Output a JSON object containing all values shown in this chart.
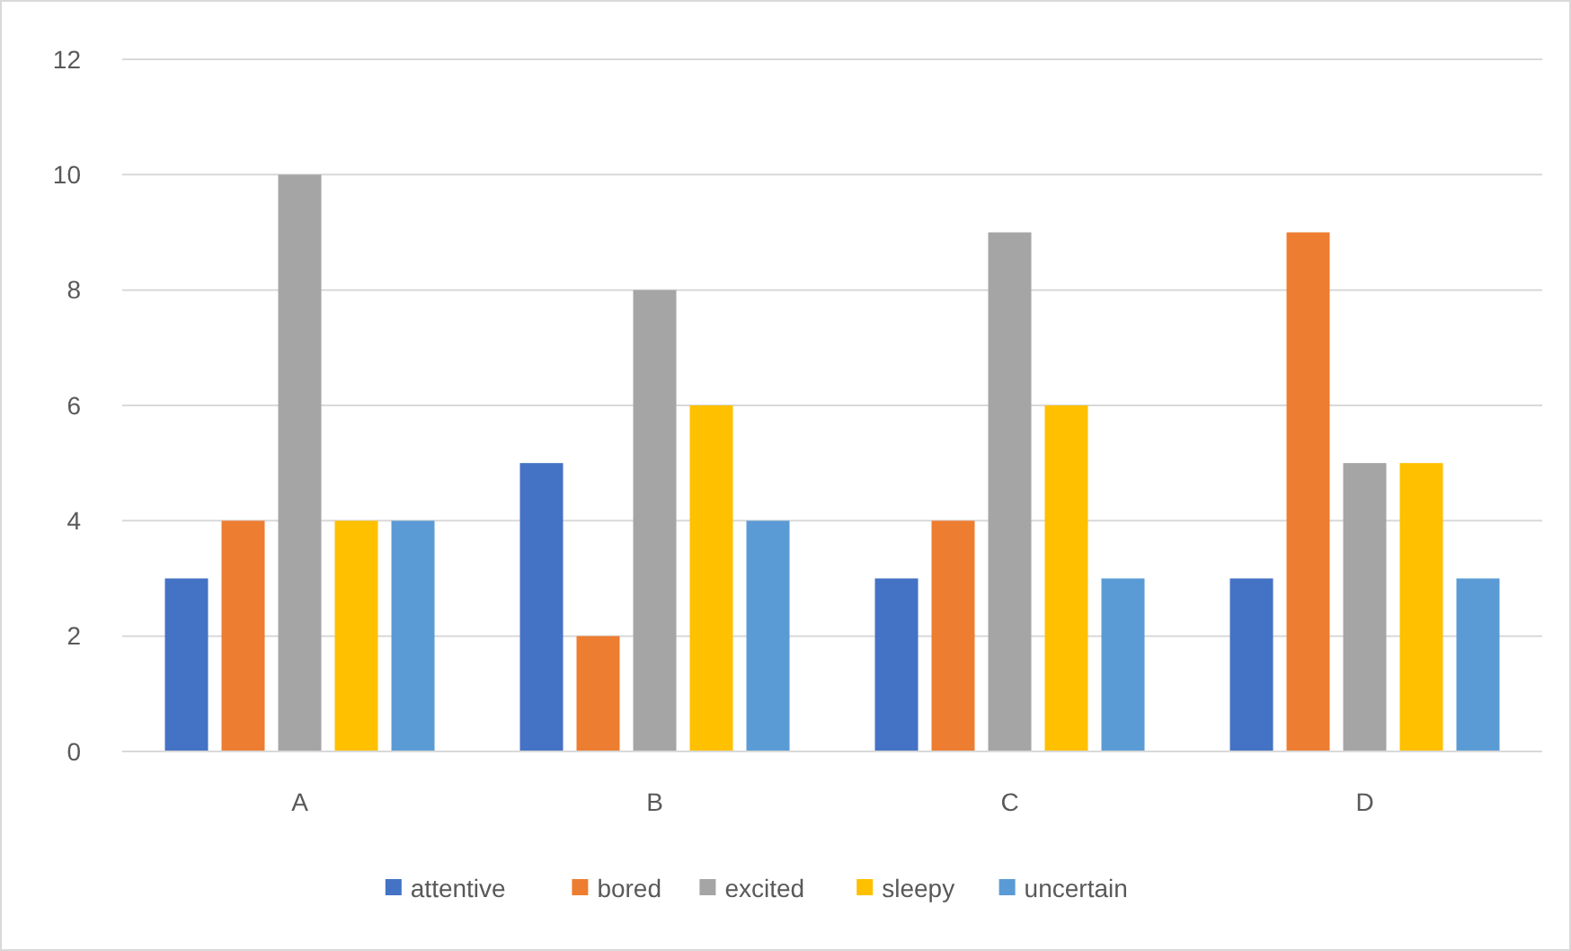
{
  "chart_data": {
    "type": "bar",
    "categories": [
      "A",
      "B",
      "C",
      "D"
    ],
    "series": [
      {
        "name": "attentive",
        "color": "#4472c4",
        "values": [
          3,
          5,
          3,
          3
        ]
      },
      {
        "name": "bored",
        "color": "#ed7d31",
        "values": [
          4,
          2,
          4,
          9
        ]
      },
      {
        "name": "excited",
        "color": "#a5a5a5",
        "values": [
          10,
          8,
          9,
          5
        ]
      },
      {
        "name": "sleepy",
        "color": "#ffc000",
        "values": [
          4,
          6,
          6,
          5
        ]
      },
      {
        "name": "uncertain",
        "color": "#5b9bd5",
        "values": [
          4,
          4,
          3,
          3
        ]
      }
    ],
    "ylim": [
      0,
      12
    ],
    "yticks": [
      0,
      2,
      4,
      6,
      8,
      10,
      12
    ],
    "grid": "y",
    "legend": "bottom"
  }
}
